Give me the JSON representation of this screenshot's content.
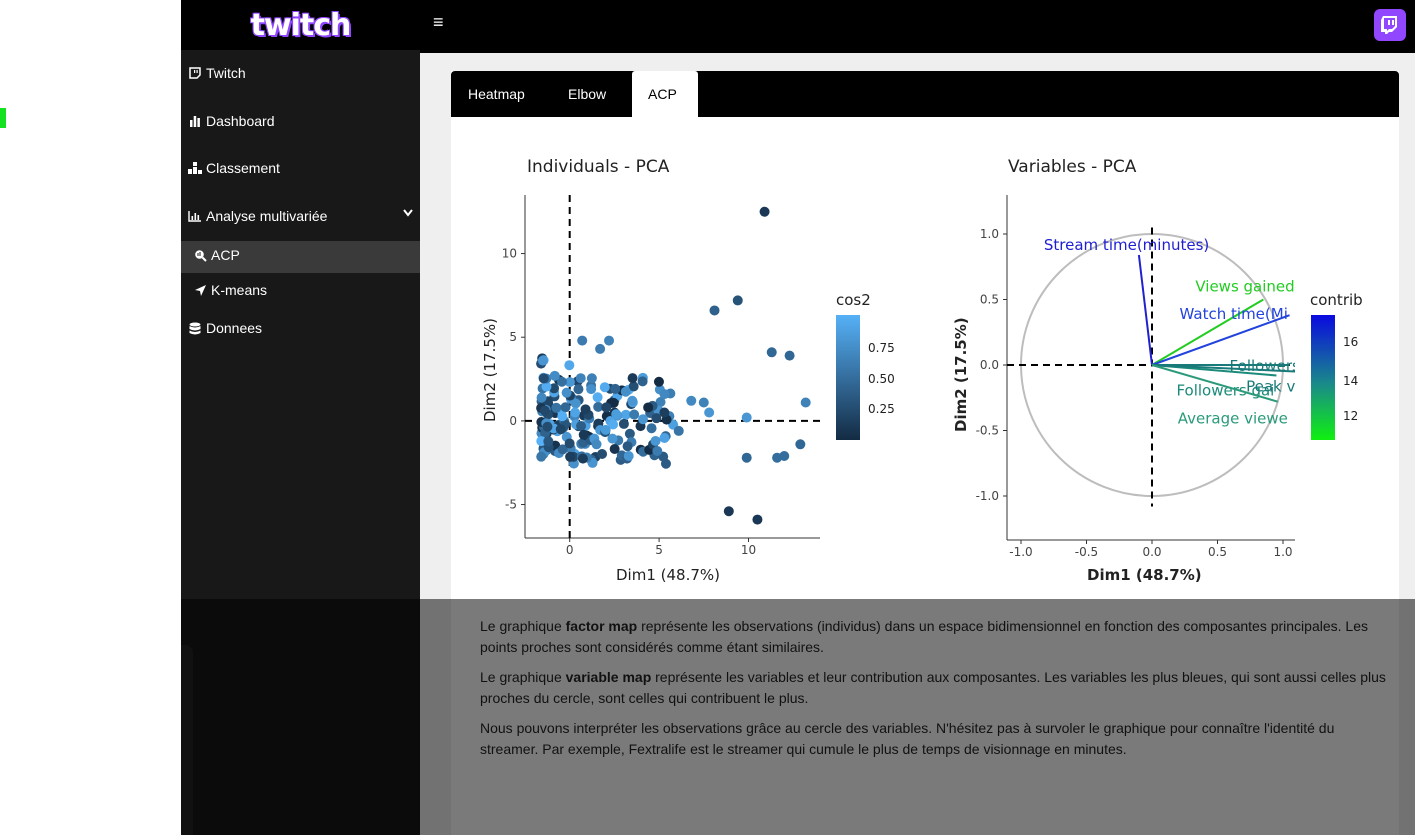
{
  "brand": {
    "logo_text": "twitch",
    "accent": "#9146ff"
  },
  "topbar": {
    "menu_icon": "hamburger-icon",
    "avatar_icon": "twitch-glitch-icon"
  },
  "sidebar": {
    "items": [
      {
        "label": "Twitch",
        "icon": "twitch-glitch-icon"
      },
      {
        "label": "Dashboard",
        "icon": "bar-chart-icon"
      },
      {
        "label": "Classement",
        "icon": "podium-icon"
      },
      {
        "label": "Analyse multivariée",
        "icon": "line-chart-icon"
      },
      {
        "label": "ACP",
        "icon": "search-chart-icon"
      },
      {
        "label": "K-means",
        "icon": "location-arrow-icon"
      },
      {
        "label": "Donnees",
        "icon": "database-icon"
      }
    ]
  },
  "tabs": [
    {
      "label": "Heatmap",
      "active": false
    },
    {
      "label": "Elbow",
      "active": false
    },
    {
      "label": "ACP",
      "active": true
    }
  ],
  "chart_data": [
    {
      "type": "scatter",
      "title": "Individuals - PCA",
      "xlabel": "Dim1 (48.7%)",
      "ylabel": "Dim2 (17.5%)",
      "xlim": [
        -2.5,
        14
      ],
      "ylim": [
        -7,
        13.5
      ],
      "x_ticks": [
        0,
        5,
        10
      ],
      "y_ticks": [
        -5,
        0,
        5,
        10
      ],
      "legend": {
        "title": "cos2",
        "ticks": [
          "0.75",
          "0.50",
          "0.25"
        ],
        "placement": "right"
      },
      "points": [
        {
          "x": 10.9,
          "y": 12.5,
          "cos2": 0.9
        },
        {
          "x": 9.4,
          "y": 7.2,
          "cos2": 0.7
        },
        {
          "x": 8.1,
          "y": 6.6,
          "cos2": 0.6
        },
        {
          "x": 11.3,
          "y": 4.1,
          "cos2": 0.55
        },
        {
          "x": 12.3,
          "y": 3.9,
          "cos2": 0.55
        },
        {
          "x": 13.2,
          "y": 1.1,
          "cos2": 0.35
        },
        {
          "x": 9.9,
          "y": 0.2,
          "cos2": 0.2
        },
        {
          "x": 9.9,
          "y": -2.2,
          "cos2": 0.55
        },
        {
          "x": 11.6,
          "y": -2.2,
          "cos2": 0.5
        },
        {
          "x": 12.0,
          "y": -2.1,
          "cos2": 0.5
        },
        {
          "x": 12.9,
          "y": -1.4,
          "cos2": 0.55
        },
        {
          "x": 8.9,
          "y": -5.4,
          "cos2": 0.9
        },
        {
          "x": 10.5,
          "y": -5.9,
          "cos2": 0.9
        },
        {
          "x": 0.7,
          "y": 4.8,
          "cos2": 0.4
        },
        {
          "x": 2.2,
          "y": 4.8,
          "cos2": 0.35
        },
        {
          "x": 1.7,
          "y": 4.3,
          "cos2": 0.4
        },
        {
          "x": -1.5,
          "y": 3.6,
          "cos2": 0.2
        },
        {
          "x": 5.3,
          "y": 1.6,
          "cos2": 0.3
        },
        {
          "x": 6.8,
          "y": 1.2,
          "cos2": 0.3
        },
        {
          "x": 7.5,
          "y": 1.1,
          "cos2": 0.35
        },
        {
          "x": 7.8,
          "y": 0.5,
          "cos2": 0.2
        },
        {
          "x": 3.5,
          "y": 1.2,
          "cos2": 0.2
        },
        {
          "x": 4.8,
          "y": -1.2,
          "cos2": 0.2
        },
        {
          "x": 6.1,
          "y": -0.6,
          "cos2": 0.45
        },
        {
          "x": 4.9,
          "y": -1.8,
          "cos2": 0.4
        },
        {
          "x": 3.3,
          "y": -2.1,
          "cos2": 0.2
        },
        {
          "x": 1.5,
          "y": -1.4,
          "cos2": 0.3
        },
        {
          "x": 0.3,
          "y": 0.5,
          "cos2": 0.1
        },
        {
          "x": -0.5,
          "y": -0.5,
          "cos2": 0.8
        },
        {
          "x": 1.2,
          "y": 1.9,
          "cos2": 0.25
        },
        {
          "x": 2.6,
          "y": 0.4,
          "cos2": 0.15
        },
        {
          "x": 4.1,
          "y": 0.1,
          "cos2": 0.2
        }
      ]
    },
    {
      "type": "scatter",
      "title": "Variables - PCA",
      "xlabel": "Dim1 (48.7%)",
      "ylabel": "Dim2 (17.5%)",
      "xlim": [
        -1.1,
        1.1
      ],
      "ylim": [
        -1.3,
        1.3
      ],
      "x_ticks": [
        -1.0,
        -0.5,
        0.0,
        0.5,
        1.0
      ],
      "y_ticks": [
        -1.0,
        -0.5,
        0.0,
        0.5,
        1.0
      ],
      "legend": {
        "title": "contrib",
        "ticks": [
          "16",
          "14",
          "12"
        ],
        "placement": "right"
      },
      "vectors": [
        {
          "name": "Stream time(minutes)",
          "x": -0.1,
          "y": 0.84,
          "color": "#2020d0"
        },
        {
          "name": "Views gained",
          "x": 0.85,
          "y": 0.5,
          "color": "#22cc22"
        },
        {
          "name": "Watch time(Mi",
          "x": 1.05,
          "y": 0.38,
          "color": "#2244dd"
        },
        {
          "name": "Followers",
          "x": 1.05,
          "y": 0.0,
          "color": "#1a7a7a"
        },
        {
          "name": "Followers gai",
          "x": 0.95,
          "y": -0.08,
          "color": "#1a8a7a"
        },
        {
          "name": "Peak viewers",
          "x": 1.1,
          "y": -0.05,
          "color": "#1a7a7a"
        },
        {
          "name": "Average viewe",
          "x": 0.96,
          "y": -0.28,
          "color": "#2a9a7a"
        }
      ]
    }
  ],
  "description": {
    "p1_pre": "Le graphique ",
    "p1_bold": "factor map",
    "p1_post": " représente les observations (individus) dans un espace bidimensionnel en fonction des composantes principales. Les points proches sont considérés comme étant similaires.",
    "p2_pre": "Le graphique ",
    "p2_bold": "variable map",
    "p2_post": " représente les variables et leur contribution aux composantes. Les variables les plus bleues, qui sont aussi celles plus proches du cercle, sont celles qui contribuent le plus.",
    "p3": "Nous pouvons interpréter les observations grâce au cercle des variables. N'hésitez pas à survoler le graphique pour connaître l'identité du streamer. Par exemple, Fextralife est le streamer qui cumule le plus de temps de visionnage en minutes."
  }
}
